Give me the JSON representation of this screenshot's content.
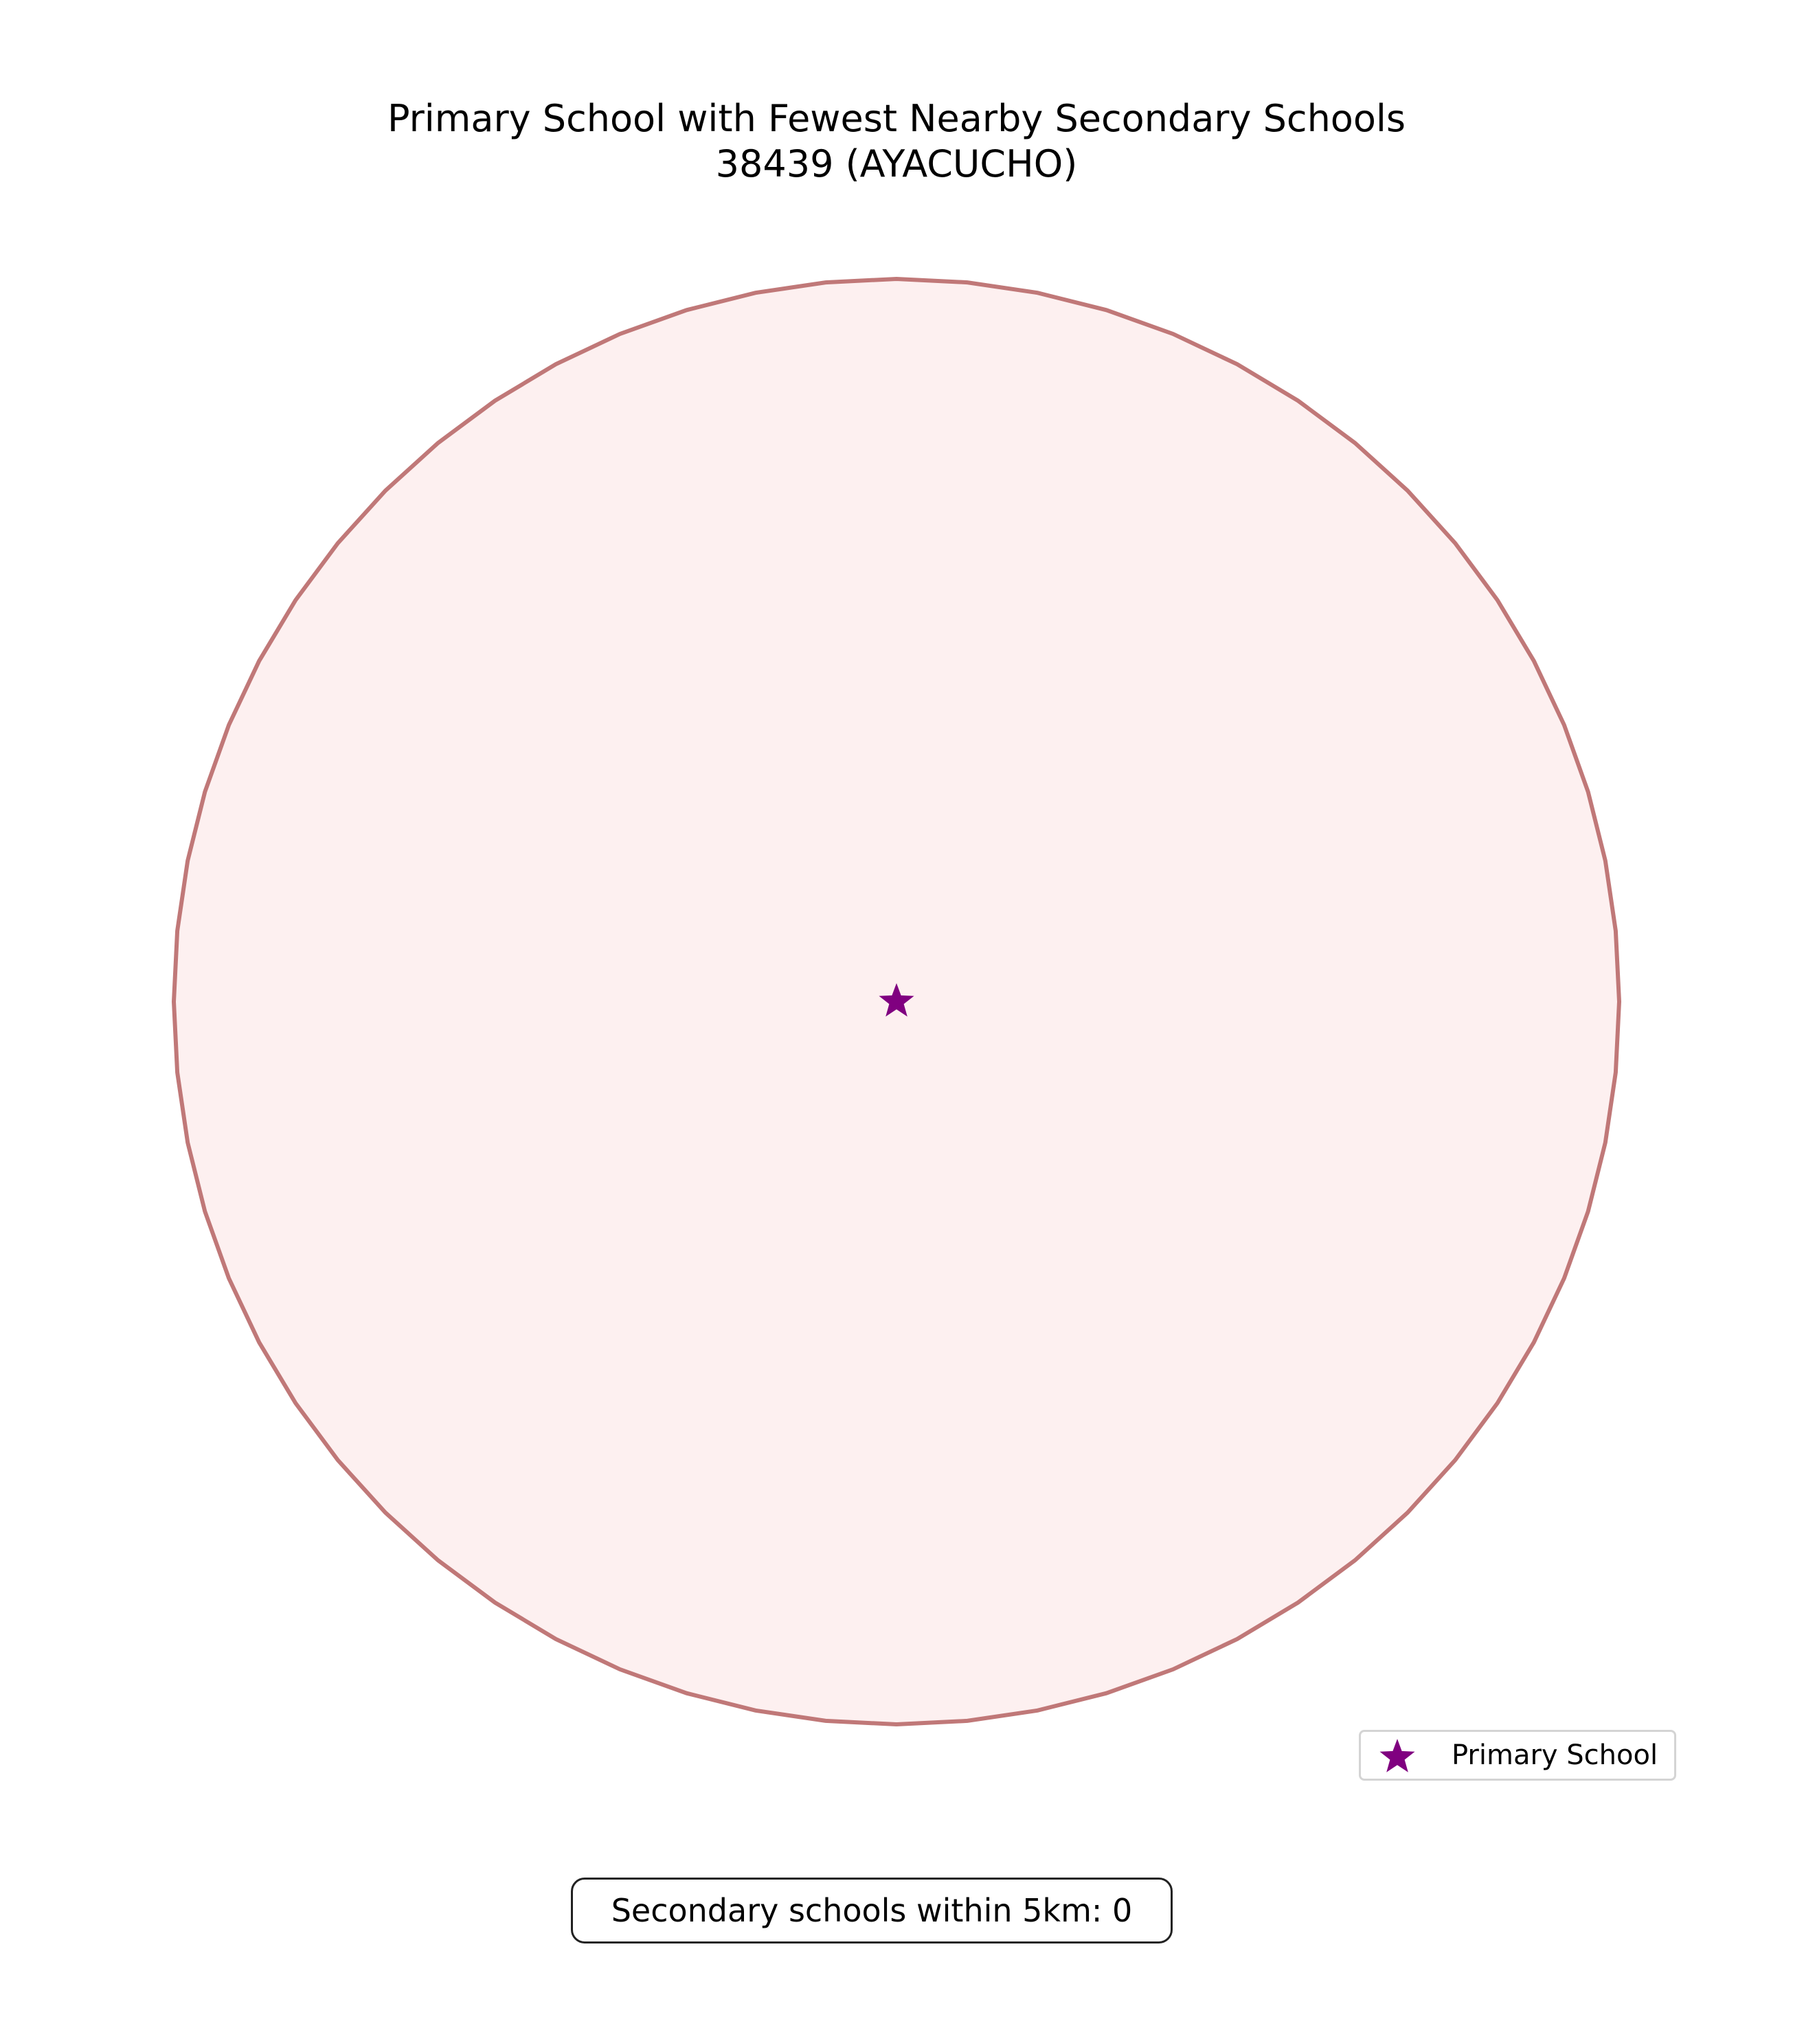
{
  "map": {
    "title_line1": "Primary School with Fewest Nearby Secondary Schools",
    "title_line2": "38439 (AYACUCHO)",
    "buffer": {
      "fill_color": "#fdf0f0",
      "stroke_color": "#c07878"
    },
    "primary_school": {
      "marker_icon": "star-icon",
      "color": "#800080"
    },
    "legend": {
      "items": [
        {
          "label": "Primary School",
          "icon": "star-icon",
          "color": "#800080"
        }
      ]
    },
    "annotation": {
      "text": "Secondary schools within 5km: 0"
    }
  }
}
